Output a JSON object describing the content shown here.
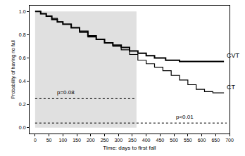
{
  "chart_data": {
    "type": "line",
    "line_style": "step",
    "xlabel": "Time: days to first fall",
    "ylabel": "Probability of having no fall",
    "xlim": [
      -20,
      700
    ],
    "ylim": [
      -0.05,
      1.05
    ],
    "xticks": [
      0,
      50,
      100,
      150,
      200,
      250,
      300,
      350,
      400,
      450,
      500,
      550,
      600,
      650,
      700
    ],
    "yticks": [
      {
        "value": 0,
        "label": "0.0"
      },
      {
        "value": 0.2,
        "label": "0.2"
      },
      {
        "value": 0.4,
        "label": "0.4"
      },
      {
        "value": 0.6,
        "label": "0.6"
      },
      {
        "value": 0.8,
        "label": "0.8"
      },
      {
        "value": 1,
        "label": "1.0"
      }
    ],
    "grid": false,
    "series": [
      {
        "name": "CVT",
        "color": "#000000",
        "x": [
          0,
          20,
          40,
          60,
          80,
          100,
          130,
          160,
          190,
          220,
          250,
          280,
          310,
          340,
          370,
          400,
          430,
          470,
          520,
          680
        ],
        "values": [
          1.0,
          0.98,
          0.96,
          0.93,
          0.91,
          0.89,
          0.86,
          0.83,
          0.79,
          0.76,
          0.73,
          0.71,
          0.69,
          0.66,
          0.64,
          0.62,
          0.6,
          0.58,
          0.57,
          0.57
        ]
      },
      {
        "name": "CT",
        "color": "#000000",
        "x": [
          0,
          20,
          40,
          60,
          80,
          100,
          130,
          160,
          190,
          220,
          250,
          280,
          310,
          340,
          370,
          400,
          430,
          460,
          490,
          520,
          550,
          580,
          610,
          640,
          680
        ],
        "values": [
          1.0,
          0.98,
          0.96,
          0.94,
          0.91,
          0.89,
          0.86,
          0.82,
          0.78,
          0.76,
          0.73,
          0.7,
          0.67,
          0.63,
          0.58,
          0.55,
          0.52,
          0.49,
          0.45,
          0.41,
          0.37,
          0.33,
          0.31,
          0.3,
          0.3
        ]
      }
    ],
    "shaded_region": {
      "x": [
        0,
        365
      ],
      "y": [
        0,
        1
      ],
      "color": "#e0e0e0"
    },
    "comparisons": [
      {
        "label": "p=0.08",
        "x": [
          0,
          365
        ],
        "y": 0.25,
        "label_x": 110
      },
      {
        "label": "p<0.01",
        "x": [
          0,
          690
        ],
        "y": 0.04,
        "label_x": 540
      }
    ]
  }
}
